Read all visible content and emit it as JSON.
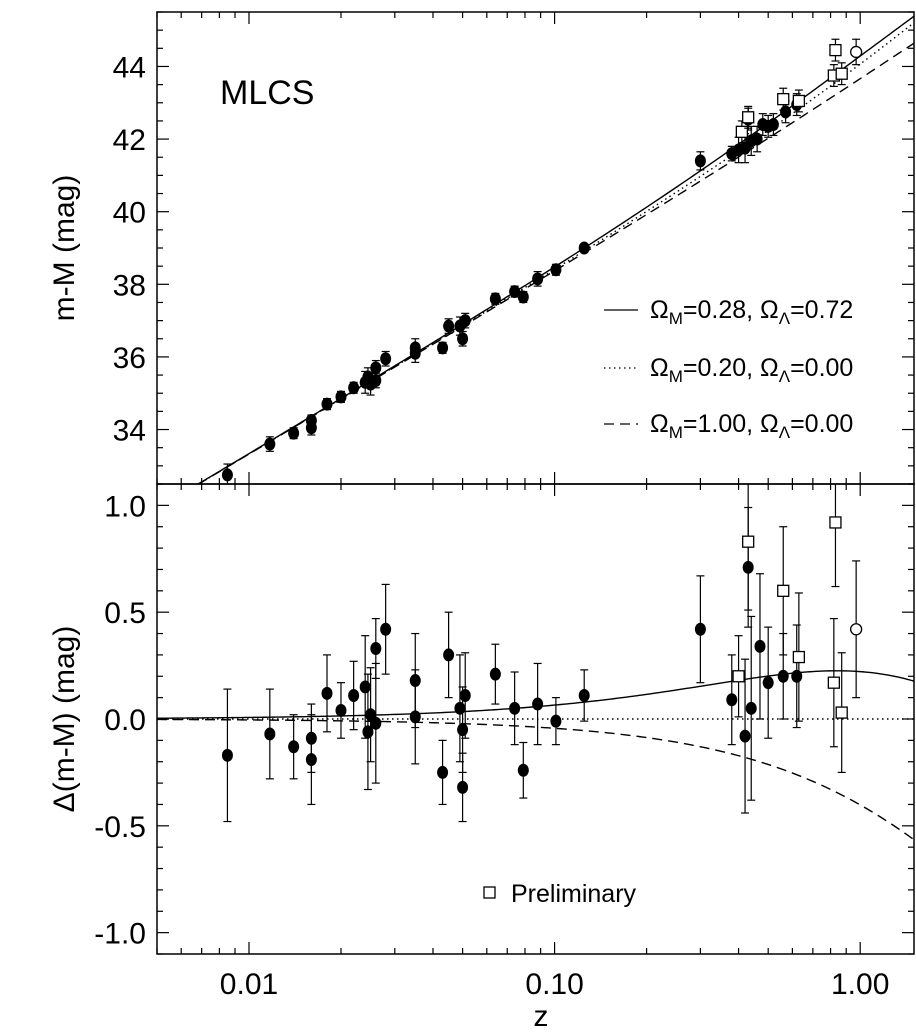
{
  "chart_data": [
    {
      "type": "scatter",
      "panel_label": "MLCS",
      "xlabel": "",
      "ylabel": "m-M (mag)",
      "xscale": "log",
      "xlim": [
        0.005,
        1.5
      ],
      "ylim": [
        32.5,
        45.5
      ],
      "yticks": [
        "34",
        "36",
        "38",
        "40",
        "42",
        "44"
      ],
      "grid": false,
      "legend_placement": "right",
      "legend": [
        {
          "label": "Ω_M=0.28, Ω_Λ=0.72",
          "style": "solid"
        },
        {
          "label": "Ω_M=0.20, Ω_Λ=0.00",
          "style": "dotted"
        },
        {
          "label": "Ω_M=1.00, Ω_Λ=0.00",
          "style": "dashed"
        }
      ],
      "series": [
        {
          "name": "",
          "marker": "filled-circle",
          "points": [
            {
              "x": 0.0085,
              "y": 32.75,
              "err": 0.3
            },
            {
              "x": 0.0117,
              "y": 33.6,
              "err": 0.2
            },
            {
              "x": 0.014,
              "y": 33.9,
              "err": 0.15
            },
            {
              "x": 0.016,
              "y": 34.05,
              "err": 0.2
            },
            {
              "x": 0.016,
              "y": 34.25,
              "err": 0.15
            },
            {
              "x": 0.018,
              "y": 34.7,
              "err": 0.15
            },
            {
              "x": 0.02,
              "y": 34.9,
              "err": 0.15
            },
            {
              "x": 0.022,
              "y": 35.15,
              "err": 0.15
            },
            {
              "x": 0.024,
              "y": 35.3,
              "err": 0.3
            },
            {
              "x": 0.0245,
              "y": 35.45,
              "err": 0.25
            },
            {
              "x": 0.025,
              "y": 35.25,
              "err": 0.3
            },
            {
              "x": 0.026,
              "y": 35.35,
              "err": 0.2
            },
            {
              "x": 0.026,
              "y": 35.7,
              "err": 0.2
            },
            {
              "x": 0.028,
              "y": 35.95,
              "err": 0.2
            },
            {
              "x": 0.035,
              "y": 36.25,
              "err": 0.25
            },
            {
              "x": 0.035,
              "y": 36.1,
              "err": 0.25
            },
            {
              "x": 0.043,
              "y": 36.25,
              "err": 0.15
            },
            {
              "x": 0.045,
              "y": 36.85,
              "err": 0.2
            },
            {
              "x": 0.049,
              "y": 36.85,
              "err": 0.25
            },
            {
              "x": 0.05,
              "y": 36.5,
              "err": 0.2
            },
            {
              "x": 0.051,
              "y": 37.0,
              "err": 0.2
            },
            {
              "x": 0.064,
              "y": 37.6,
              "err": 0.15
            },
            {
              "x": 0.074,
              "y": 37.8,
              "err": 0.15
            },
            {
              "x": 0.079,
              "y": 37.65,
              "err": 0.15
            },
            {
              "x": 0.088,
              "y": 38.15,
              "err": 0.2
            },
            {
              "x": 0.101,
              "y": 38.4,
              "err": 0.15
            },
            {
              "x": 0.125,
              "y": 39.0,
              "err": 0.1
            },
            {
              "x": 0.3,
              "y": 41.4,
              "err": 0.25
            },
            {
              "x": 0.38,
              "y": 41.6,
              "err": 0.2
            },
            {
              "x": 0.4,
              "y": 41.7,
              "err": 0.35
            },
            {
              "x": 0.42,
              "y": 41.75,
              "err": 0.4
            },
            {
              "x": 0.43,
              "y": 42.55,
              "err": 0.3
            },
            {
              "x": 0.44,
              "y": 41.95,
              "err": 0.4
            },
            {
              "x": 0.46,
              "y": 42.0,
              "err": 0.35
            },
            {
              "x": 0.48,
              "y": 42.4,
              "err": 0.3
            },
            {
              "x": 0.5,
              "y": 42.35,
              "err": 0.3
            },
            {
              "x": 0.52,
              "y": 42.4,
              "err": 0.3
            },
            {
              "x": 0.57,
              "y": 42.75,
              "err": 0.3
            },
            {
              "x": 0.62,
              "y": 42.95,
              "err": 0.3
            }
          ]
        },
        {
          "name": "Preliminary",
          "marker": "open-square",
          "points": [
            {
              "x": 0.41,
              "y": 42.2,
              "err": 0.3
            },
            {
              "x": 0.43,
              "y": 42.6,
              "err": 0.3
            },
            {
              "x": 0.56,
              "y": 43.1,
              "err": 0.3
            },
            {
              "x": 0.63,
              "y": 43.05,
              "err": 0.3
            },
            {
              "x": 0.82,
              "y": 43.75,
              "err": 0.3
            },
            {
              "x": 0.83,
              "y": 44.45,
              "err": 0.3
            },
            {
              "x": 0.87,
              "y": 43.8,
              "err": 0.3
            }
          ]
        },
        {
          "name": "",
          "marker": "open-circle",
          "points": [
            {
              "x": 0.97,
              "y": 44.4,
              "err": 0.35
            }
          ]
        }
      ]
    },
    {
      "type": "scatter",
      "xlabel": "z",
      "ylabel": "Δ(m-M) (mag)",
      "xscale": "log",
      "xlim": [
        0.005,
        1.5
      ],
      "ylim": [
        -1.1,
        1.1
      ],
      "xticks": [
        "0.01",
        "0.10",
        "1.00"
      ],
      "yticks": [
        "-1.0",
        "-0.5",
        "0.0",
        "0.5",
        "1.0"
      ],
      "grid": false,
      "legend_placement": "bottom-center",
      "legend": [
        {
          "label": "Preliminary",
          "marker": "open-square"
        }
      ],
      "series": [
        {
          "name": "",
          "marker": "filled-circle",
          "points": [
            {
              "x": 0.0085,
              "y": -0.17,
              "err": 0.31
            },
            {
              "x": 0.0117,
              "y": -0.07,
              "err": 0.21
            },
            {
              "x": 0.014,
              "y": -0.13,
              "err": 0.15
            },
            {
              "x": 0.016,
              "y": -0.19,
              "err": 0.21
            },
            {
              "x": 0.016,
              "y": -0.09,
              "err": 0.16
            },
            {
              "x": 0.018,
              "y": 0.12,
              "err": 0.18
            },
            {
              "x": 0.02,
              "y": 0.04,
              "err": 0.13
            },
            {
              "x": 0.022,
              "y": 0.11,
              "err": 0.16
            },
            {
              "x": 0.024,
              "y": 0.15,
              "err": 0.24
            },
            {
              "x": 0.0245,
              "y": -0.06,
              "err": 0.27
            },
            {
              "x": 0.025,
              "y": 0.02,
              "err": 0.22
            },
            {
              "x": 0.026,
              "y": 0.33,
              "err": 0.14
            },
            {
              "x": 0.026,
              "y": -0.02,
              "err": 0.28
            },
            {
              "x": 0.028,
              "y": 0.42,
              "err": 0.21
            },
            {
              "x": 0.035,
              "y": 0.18,
              "err": 0.22
            },
            {
              "x": 0.035,
              "y": 0.01,
              "err": 0.22
            },
            {
              "x": 0.043,
              "y": -0.25,
              "err": 0.15
            },
            {
              "x": 0.045,
              "y": 0.3,
              "err": 0.2
            },
            {
              "x": 0.049,
              "y": 0.05,
              "err": 0.25
            },
            {
              "x": 0.05,
              "y": -0.05,
              "err": 0.2
            },
            {
              "x": 0.05,
              "y": -0.32,
              "err": 0.16
            },
            {
              "x": 0.051,
              "y": 0.11,
              "err": 0.2
            },
            {
              "x": 0.064,
              "y": 0.21,
              "err": 0.14
            },
            {
              "x": 0.074,
              "y": 0.05,
              "err": 0.17
            },
            {
              "x": 0.079,
              "y": -0.24,
              "err": 0.13
            },
            {
              "x": 0.088,
              "y": 0.07,
              "err": 0.19
            },
            {
              "x": 0.101,
              "y": -0.01,
              "err": 0.11
            },
            {
              "x": 0.125,
              "y": 0.11,
              "err": 0.12
            },
            {
              "x": 0.3,
              "y": 0.42,
              "err": 0.25
            },
            {
              "x": 0.38,
              "y": 0.09,
              "err": 0.21
            },
            {
              "x": 0.42,
              "y": -0.08,
              "err": 0.36
            },
            {
              "x": 0.43,
              "y": 0.71,
              "err": 0.28
            },
            {
              "x": 0.44,
              "y": 0.05,
              "err": 0.43
            },
            {
              "x": 0.47,
              "y": 0.34,
              "err": 0.34
            },
            {
              "x": 0.5,
              "y": 0.17,
              "err": 0.26
            },
            {
              "x": 0.56,
              "y": 0.2,
              "err": 0.2
            },
            {
              "x": 0.62,
              "y": 0.2,
              "err": 0.24
            }
          ]
        },
        {
          "name": "Preliminary",
          "marker": "open-square",
          "points": [
            {
              "x": 0.4,
              "y": 0.2,
              "err": 0.19
            },
            {
              "x": 0.43,
              "y": 0.83,
              "err": 0.32
            },
            {
              "x": 0.56,
              "y": 0.6,
              "err": 0.3
            },
            {
              "x": 0.63,
              "y": 0.29,
              "err": 0.3
            },
            {
              "x": 0.82,
              "y": 0.17,
              "err": 0.3
            },
            {
              "x": 0.83,
              "y": 0.92,
              "err": 0.3
            },
            {
              "x": 0.87,
              "y": 0.03,
              "err": 0.28
            }
          ]
        },
        {
          "name": "",
          "marker": "open-circle",
          "points": [
            {
              "x": 0.97,
              "y": 0.42,
              "err": 0.32
            }
          ]
        }
      ]
    }
  ]
}
